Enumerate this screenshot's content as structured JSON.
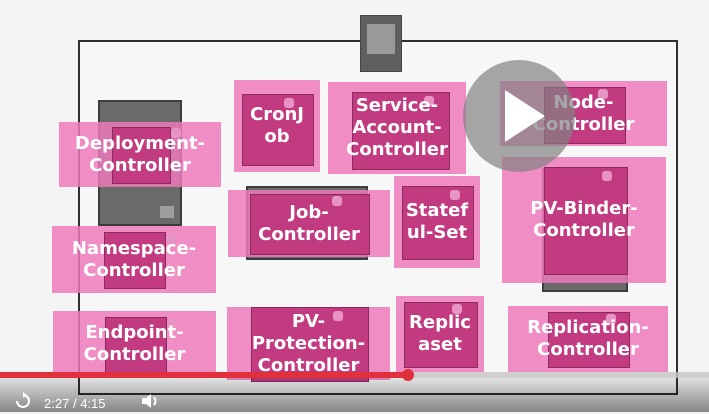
{
  "controllers": {
    "deployment": "Deployment-\nController",
    "cronjob": "CronJ\nob",
    "service_account": "Service-\nAccount-\nController",
    "node": "Node-\nController",
    "namespace": "Namespace-\nController",
    "job": "Job-\nController",
    "statefulset": "Statef\nul-Set",
    "pv_binder": "PV-Binder-\nController",
    "endpoint": "Endpoint-\nController",
    "pv_protection": "PV-\nProtection-\nController",
    "replicaset": "Replic\naset",
    "replication": "Replication-\nController"
  },
  "player": {
    "current_time": "2:27",
    "separator": "/",
    "duration": "4:15",
    "progress_fraction": 0.576,
    "played_color": "#e0303b",
    "icons": {
      "replay": "replay-icon",
      "volume": "volume-icon",
      "play": "play-icon"
    }
  }
}
